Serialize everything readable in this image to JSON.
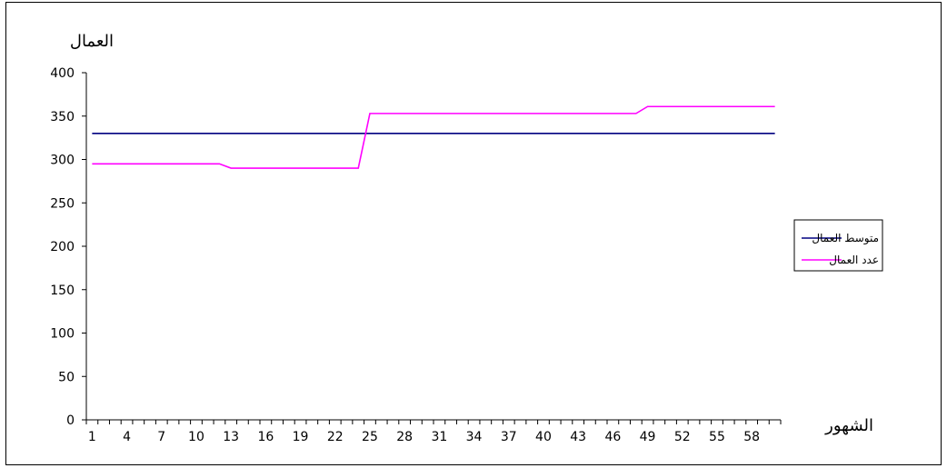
{
  "chart_data": {
    "type": "line",
    "title": "",
    "xlabel": "الشهور",
    "ylabel": "العمال",
    "ylim": [
      0,
      400
    ],
    "yticks": [
      0,
      50,
      100,
      150,
      200,
      250,
      300,
      350,
      400
    ],
    "x_tick_labels": [
      1,
      4,
      7,
      10,
      13,
      16,
      19,
      22,
      25,
      28,
      31,
      34,
      37,
      40,
      43,
      46,
      49,
      52,
      55,
      58
    ],
    "x_count": 60,
    "grid": false,
    "legend_position": "right",
    "series": [
      {
        "name": "متوسط العمال",
        "color": "#000080",
        "values": [
          330,
          330,
          330,
          330,
          330,
          330,
          330,
          330,
          330,
          330,
          330,
          330,
          330,
          330,
          330,
          330,
          330,
          330,
          330,
          330,
          330,
          330,
          330,
          330,
          330,
          330,
          330,
          330,
          330,
          330,
          330,
          330,
          330,
          330,
          330,
          330,
          330,
          330,
          330,
          330,
          330,
          330,
          330,
          330,
          330,
          330,
          330,
          330,
          330,
          330,
          330,
          330,
          330,
          330,
          330,
          330,
          330,
          330,
          330,
          330
        ]
      },
      {
        "name": "عدد العمال",
        "color": "#ff00ff",
        "values": [
          295,
          295,
          295,
          295,
          295,
          295,
          295,
          295,
          295,
          295,
          295,
          295,
          290,
          290,
          290,
          290,
          290,
          290,
          290,
          290,
          290,
          290,
          290,
          290,
          353,
          353,
          353,
          353,
          353,
          353,
          353,
          353,
          353,
          353,
          353,
          353,
          353,
          353,
          353,
          353,
          353,
          353,
          353,
          353,
          353,
          353,
          353,
          353,
          361,
          361,
          361,
          361,
          361,
          361,
          361,
          361,
          361,
          361,
          361,
          361
        ]
      }
    ]
  }
}
